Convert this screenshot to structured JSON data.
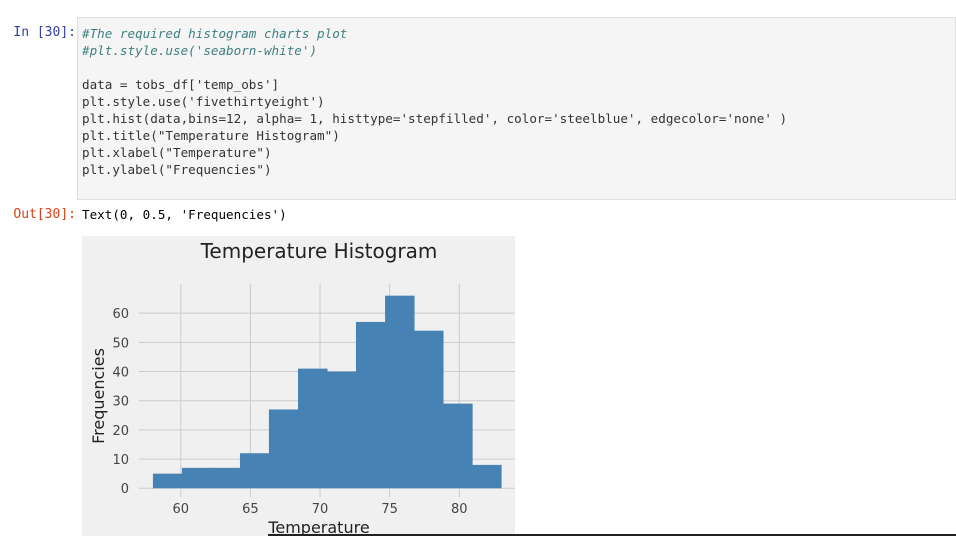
{
  "input_cell": {
    "prompt": "In [30]:",
    "lines": [
      "#The required histogram charts plot",
      "#plt.style.use('seaborn-white')",
      "",
      "data = tobs_df['temp_obs']",
      "plt.style.use('fivethirtyeight')",
      "plt.hist(data,bins=12, alpha= 1, histtype='stepfilled', color='steelblue', edgecolor='none' )",
      "plt.title(\"Temperature Histogram\")",
      "plt.xlabel(\"Temperature\")",
      "plt.ylabel(\"Frequencies\")"
    ]
  },
  "output_cell": {
    "prompt": "Out[30]:",
    "text": "Text(0, 0.5, 'Frequencies')"
  },
  "colors": {
    "bar": "#4682b4",
    "figure_bg": "#f0f0f0",
    "grid": "#cbcbcb",
    "in_prompt": "#303f9f",
    "out_prompt": "#d84315"
  },
  "chart_data": {
    "type": "bar",
    "title": "Temperature Histogram",
    "xlabel": "Temperature",
    "ylabel": "Frequencies",
    "bin_edges": [
      58.0,
      60.08,
      62.17,
      64.25,
      66.33,
      68.42,
      70.5,
      72.58,
      74.67,
      76.75,
      78.83,
      80.92,
      83.0
    ],
    "values": [
      5,
      7,
      7,
      12,
      27,
      41,
      40,
      57,
      66,
      54,
      29,
      8
    ],
    "xticks": [
      60,
      65,
      70,
      75,
      80
    ],
    "yticks": [
      0,
      10,
      20,
      30,
      40,
      50,
      60
    ],
    "xlim": [
      57.0,
      84.0
    ],
    "ylim": [
      -3.0,
      70.0
    ],
    "grid": true,
    "legend": "none"
  }
}
